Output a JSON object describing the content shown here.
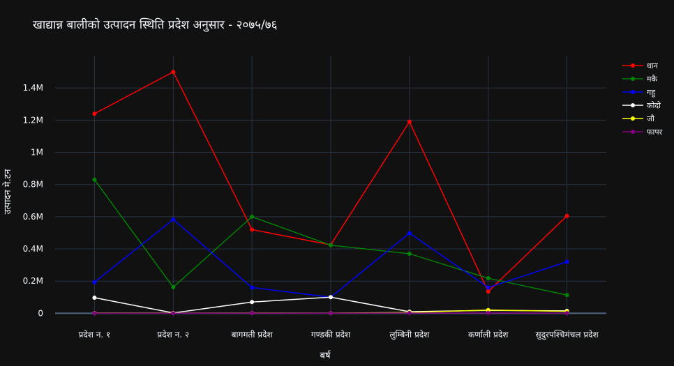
{
  "chart_data": {
    "type": "line",
    "title": "खाद्यान्न बालीको उत्पादन स्थिति प्रदेश अनुसार - २०७५/७६",
    "xlabel": "बर्ष",
    "ylabel": "उत्पादन मे.टन",
    "categories": [
      "प्रदेश न. १",
      "प्रदेश न. २",
      "बागमती प्रदेश",
      "गण्डकी प्रदेश",
      "लुम्बिनी प्रदेश",
      "कर्णाली प्रदेश",
      "सुदुरपश्चिमंचल प्रदेश"
    ],
    "ylim": [
      -20000,
      1600000
    ],
    "yticks": [
      0,
      200000,
      400000,
      600000,
      800000,
      1000000,
      1200000,
      1400000
    ],
    "ytick_labels": [
      "0",
      "0.2M",
      "0.4M",
      "0.6M",
      "0.8M",
      "1M",
      "1.2M",
      "1.4M"
    ],
    "grid": true,
    "legend_position": "top-right",
    "series": [
      {
        "name": "धान",
        "color": "#ff0000",
        "values": [
          1240000,
          1500000,
          520000,
          425000,
          1190000,
          135000,
          605000
        ]
      },
      {
        "name": "मकै",
        "color": "#008000",
        "values": [
          830000,
          162000,
          600000,
          423000,
          370000,
          218000,
          113000
        ]
      },
      {
        "name": "गहु",
        "color": "#0000ff",
        "values": [
          193000,
          583000,
          160000,
          100000,
          498000,
          160000,
          320000
        ]
      },
      {
        "name": "कोदो",
        "color": "#ffffff",
        "values": [
          97000,
          2000,
          70000,
          100000,
          10000,
          18000,
          15000
        ]
      },
      {
        "name": "जौ",
        "color": "#ffff00",
        "values": [
          1500,
          1000,
          1500,
          1000,
          5000,
          20000,
          12000
        ]
      },
      {
        "name": "फापर",
        "color": "#800080",
        "values": [
          500,
          300,
          1000,
          800,
          1500,
          2000,
          1200
        ]
      }
    ]
  }
}
